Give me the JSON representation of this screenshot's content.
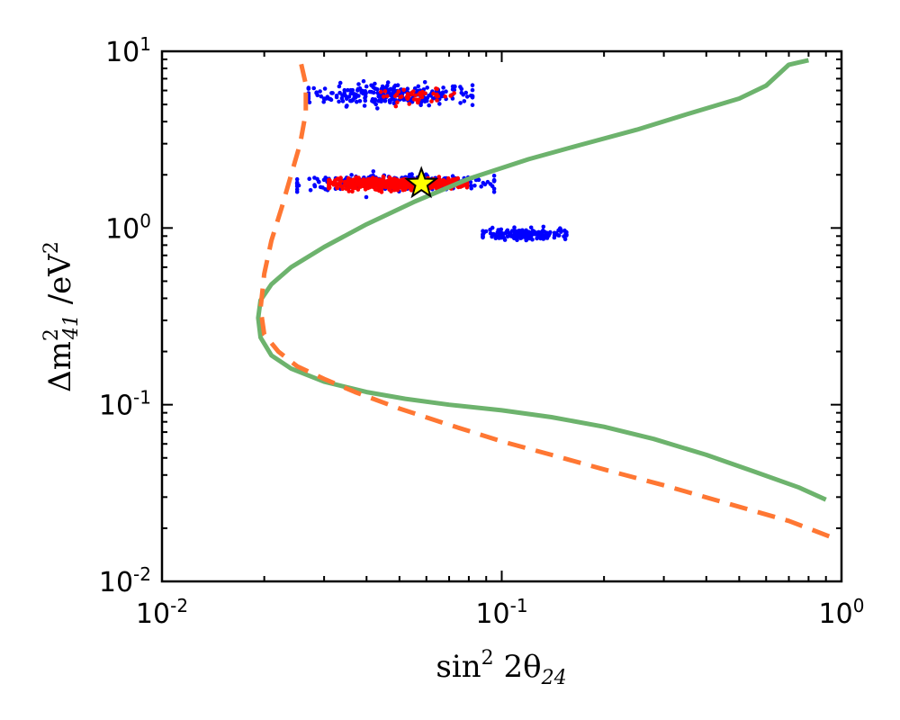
{
  "chart_data": {
    "type": "scatter",
    "title": "",
    "xlabel": {
      "base": "sin",
      "sup": "2",
      "mid": " 2θ",
      "sub": "24"
    },
    "ylabel": {
      "pre": "Δm",
      "sup": "2",
      "sub": "41",
      "post": " /eV",
      "post_sup": "2"
    },
    "xscale": "log",
    "yscale": "log",
    "xlim": [
      0.01,
      1
    ],
    "ylim": [
      0.01,
      10
    ],
    "xticks": [
      {
        "base": "10",
        "exp": "-2"
      },
      {
        "base": "10",
        "exp": "-1"
      },
      {
        "base": "10",
        "exp": "0"
      }
    ],
    "yticks": [
      {
        "base": "10",
        "exp": "-2"
      },
      {
        "base": "10",
        "exp": "-1"
      },
      {
        "base": "10",
        "exp": "0"
      },
      {
        "base": "10",
        "exp": "1"
      }
    ],
    "grid": false,
    "legend": null,
    "colors": {
      "solid_curve": "#6db36d",
      "dashed_curve": "#ff7733",
      "blue_points": "#0000ff",
      "red_points": "#ff0000",
      "star_fill": "#ffff00",
      "star_edge": "#000000"
    },
    "curves": [
      {
        "style": "solid",
        "x": [
          0.9,
          0.75,
          0.55,
          0.4,
          0.28,
          0.2,
          0.14,
          0.1,
          0.07,
          0.052,
          0.04,
          0.03,
          0.024,
          0.021,
          0.0195,
          0.0192,
          0.0195,
          0.021,
          0.024,
          0.03,
          0.04,
          0.055,
          0.08,
          0.12,
          0.17,
          0.25,
          0.35,
          0.5,
          0.6,
          0.7,
          0.8
        ],
        "y": [
          0.029,
          0.034,
          0.042,
          0.052,
          0.064,
          0.075,
          0.085,
          0.093,
          0.1,
          0.108,
          0.118,
          0.135,
          0.16,
          0.19,
          0.24,
          0.31,
          0.39,
          0.48,
          0.6,
          0.78,
          1.05,
          1.4,
          1.9,
          2.45,
          2.95,
          3.6,
          4.4,
          5.4,
          6.4,
          8.4,
          8.9
        ]
      },
      {
        "style": "dashed",
        "x": [
          0.92,
          0.7,
          0.45,
          0.3,
          0.2,
          0.14,
          0.1,
          0.07,
          0.05,
          0.037,
          0.03,
          0.025,
          0.022,
          0.02,
          0.0195,
          0.02,
          0.021,
          0.0225,
          0.024,
          0.0255,
          0.0265,
          0.0265,
          0.0255
        ],
        "y": [
          0.018,
          0.022,
          0.028,
          0.035,
          0.043,
          0.052,
          0.062,
          0.077,
          0.095,
          0.118,
          0.14,
          0.165,
          0.2,
          0.25,
          0.35,
          0.55,
          0.85,
          1.3,
          2.0,
          3.0,
          4.5,
          6.5,
          9.0
        ]
      }
    ],
    "point_clusters": [
      {
        "color": "blue",
        "x_range": [
          0.027,
          0.082
        ],
        "y_center": 5.7,
        "y_spread": 0.06,
        "count": 260
      },
      {
        "color": "red",
        "x_range": [
          0.043,
          0.074
        ],
        "y_center": 5.6,
        "y_spread": 0.035,
        "count": 45
      },
      {
        "color": "blue",
        "x_range": [
          0.025,
          0.095
        ],
        "y_center": 1.8,
        "y_spread": 0.04,
        "count": 320
      },
      {
        "color": "red",
        "x_range": [
          0.031,
          0.079
        ],
        "y_center": 1.78,
        "y_spread": 0.03,
        "count": 650
      },
      {
        "color": "blue",
        "x_range": [
          0.088,
          0.155
        ],
        "y_center": 0.92,
        "y_spread": 0.03,
        "count": 170
      }
    ],
    "best_fit_star": {
      "x": 0.058,
      "y": 1.78
    }
  }
}
